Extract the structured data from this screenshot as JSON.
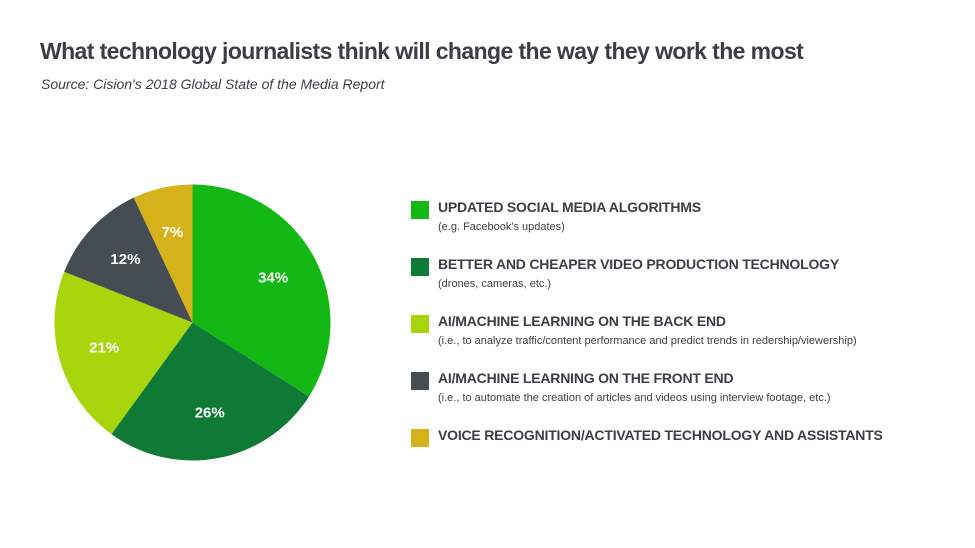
{
  "chart_data": {
    "type": "pie",
    "title": "What technology journalists think will change the way they work the most",
    "subtitle": "Source: Cision's 2018 Global State of the Media Report",
    "legend_position": "right",
    "slices": [
      {
        "label": "UPDATED SOCIAL MEDIA ALGORITHMS",
        "note": "(e.g. Facebook's updates)",
        "value": 34,
        "value_label": "34%",
        "color": "#14b814"
      },
      {
        "label": "BETTER AND CHEAPER VIDEO PRODUCTION TECHNOLOGY",
        "note": "(drones, cameras, etc.)",
        "value": 26,
        "value_label": "26%",
        "color": "#0e7a35"
      },
      {
        "label": "AI/MACHINE LEARNING ON THE BACK END",
        "note": "(i.e., to analyze traffic/content performance and predict trends in redership/viewership)",
        "value": 21,
        "value_label": "21%",
        "color": "#a8d50c"
      },
      {
        "label": "AI/MACHINE LEARNING ON THE FRONT END",
        "note": "(i.e., to automate the creation of articles and videos using interview footage, etc.)",
        "value": 12,
        "value_label": "12%",
        "color": "#454c52"
      },
      {
        "label": "VOICE RECOGNITION/ACTIVATED TECHNOLOGY AND ASSISTANTS",
        "note": "",
        "value": 7,
        "value_label": "7%",
        "color": "#d6b21a"
      }
    ]
  }
}
